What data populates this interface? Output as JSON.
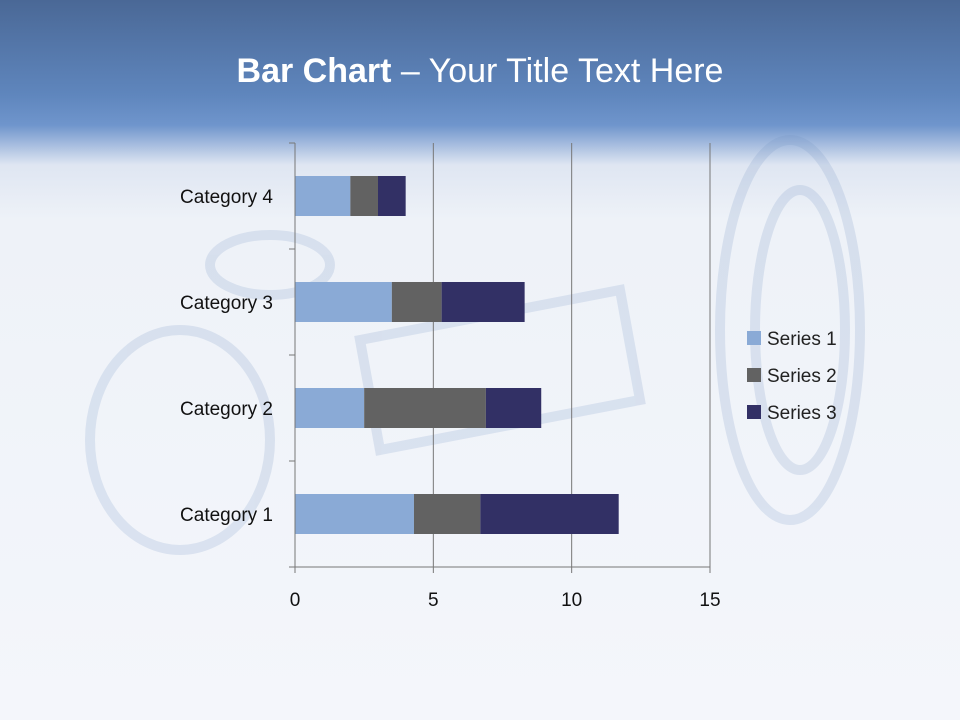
{
  "slide": {
    "title_bold": "Bar Chart",
    "title_rest": " – Your Title Text Here"
  },
  "chart_data": {
    "type": "bar",
    "orientation": "horizontal",
    "stacked": true,
    "title": "",
    "categories": [
      "Category 1",
      "Category 2",
      "Category 3",
      "Category 4"
    ],
    "series": [
      {
        "name": "Series 1",
        "values": [
          4.3,
          2.5,
          3.5,
          2
        ],
        "color": "#8aaad6"
      },
      {
        "name": "Series 2",
        "values": [
          2.4,
          4.4,
          1.8,
          1
        ],
        "color": "#626262"
      },
      {
        "name": "Series 3",
        "values": [
          5,
          2,
          3,
          1
        ],
        "color": "#323065"
      }
    ],
    "xlim": [
      0,
      15
    ],
    "xticks": [
      "0",
      "5",
      "10",
      "15"
    ],
    "grid": "vertical major",
    "legend": "right"
  }
}
